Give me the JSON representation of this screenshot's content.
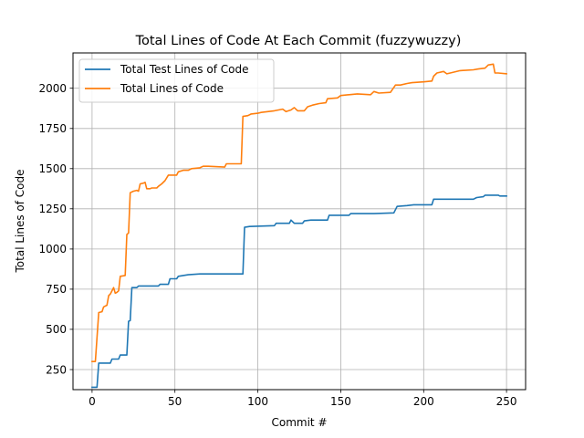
{
  "chart_data": {
    "type": "line",
    "title": "Total Lines of Code At Each Commit (fuzzywuzzy)",
    "xlabel": "Commit #",
    "ylabel": "Total Lines of Code",
    "xlim": [
      -11.5,
      261.5
    ],
    "ylim": [
      125,
      2220
    ],
    "xticks": [
      0,
      50,
      100,
      150,
      200,
      250
    ],
    "yticks": [
      250,
      500,
      750,
      1000,
      1250,
      1500,
      1750,
      2000
    ],
    "ytick_labels": [
      "250",
      "500",
      "750",
      "1000",
      "1250",
      "1500",
      "1750",
      "2000"
    ],
    "grid": true,
    "legend_position": "top-left",
    "colors": {
      "test": "#1f77b4",
      "total": "#ff7f0e"
    },
    "series": [
      {
        "name": "Total Test Lines of Code",
        "points": [
          [
            0,
            140
          ],
          [
            3,
            140
          ],
          [
            4,
            290
          ],
          [
            11,
            290
          ],
          [
            12,
            315
          ],
          [
            16,
            315
          ],
          [
            17,
            340
          ],
          [
            21,
            340
          ],
          [
            22,
            550
          ],
          [
            23,
            555
          ],
          [
            24,
            760
          ],
          [
            27,
            760
          ],
          [
            28,
            770
          ],
          [
            40,
            770
          ],
          [
            41,
            780
          ],
          [
            46,
            780
          ],
          [
            47,
            815
          ],
          [
            51,
            815
          ],
          [
            52,
            830
          ],
          [
            55,
            835
          ],
          [
            58,
            840
          ],
          [
            65,
            845
          ],
          [
            75,
            845
          ],
          [
            91,
            845
          ],
          [
            92,
            1135
          ],
          [
            95,
            1140
          ],
          [
            110,
            1145
          ],
          [
            111,
            1160
          ],
          [
            119,
            1160
          ],
          [
            120,
            1180
          ],
          [
            122,
            1160
          ],
          [
            127,
            1160
          ],
          [
            128,
            1175
          ],
          [
            132,
            1180
          ],
          [
            142,
            1180
          ],
          [
            143,
            1210
          ],
          [
            155,
            1210
          ],
          [
            156,
            1220
          ],
          [
            170,
            1220
          ],
          [
            182,
            1225
          ],
          [
            184,
            1265
          ],
          [
            190,
            1270
          ],
          [
            194,
            1275
          ],
          [
            205,
            1275
          ],
          [
            206,
            1310
          ],
          [
            230,
            1310
          ],
          [
            232,
            1320
          ],
          [
            236,
            1325
          ],
          [
            237,
            1335
          ],
          [
            245,
            1335
          ],
          [
            246,
            1330
          ],
          [
            250,
            1330
          ]
        ]
      },
      {
        "name": "Total Lines of Code",
        "points": [
          [
            0,
            300
          ],
          [
            2,
            300
          ],
          [
            4,
            605
          ],
          [
            6,
            610
          ],
          [
            7,
            640
          ],
          [
            9,
            650
          ],
          [
            10,
            710
          ],
          [
            11,
            720
          ],
          [
            12,
            740
          ],
          [
            13,
            760
          ],
          [
            14,
            725
          ],
          [
            15,
            730
          ],
          [
            16,
            740
          ],
          [
            17,
            830
          ],
          [
            20,
            835
          ],
          [
            21,
            1090
          ],
          [
            22,
            1100
          ],
          [
            23,
            1350
          ],
          [
            25,
            1360
          ],
          [
            27,
            1365
          ],
          [
            28,
            1360
          ],
          [
            29,
            1405
          ],
          [
            31,
            1410
          ],
          [
            32,
            1415
          ],
          [
            33,
            1375
          ],
          [
            35,
            1375
          ],
          [
            36,
            1380
          ],
          [
            39,
            1380
          ],
          [
            40,
            1390
          ],
          [
            42,
            1405
          ],
          [
            44,
            1425
          ],
          [
            46,
            1460
          ],
          [
            51,
            1460
          ],
          [
            52,
            1480
          ],
          [
            55,
            1490
          ],
          [
            58,
            1490
          ],
          [
            60,
            1500
          ],
          [
            65,
            1505
          ],
          [
            67,
            1515
          ],
          [
            70,
            1515
          ],
          [
            80,
            1510
          ],
          [
            81,
            1530
          ],
          [
            90,
            1530
          ],
          [
            91,
            1825
          ],
          [
            94,
            1830
          ],
          [
            96,
            1840
          ],
          [
            100,
            1845
          ],
          [
            102,
            1850
          ],
          [
            110,
            1860
          ],
          [
            115,
            1870
          ],
          [
            117,
            1855
          ],
          [
            120,
            1865
          ],
          [
            122,
            1880
          ],
          [
            124,
            1860
          ],
          [
            128,
            1860
          ],
          [
            130,
            1885
          ],
          [
            133,
            1895
          ],
          [
            137,
            1905
          ],
          [
            141,
            1910
          ],
          [
            142,
            1935
          ],
          [
            148,
            1940
          ],
          [
            150,
            1955
          ],
          [
            155,
            1960
          ],
          [
            160,
            1965
          ],
          [
            168,
            1960
          ],
          [
            170,
            1980
          ],
          [
            173,
            1970
          ],
          [
            180,
            1975
          ],
          [
            183,
            2020
          ],
          [
            186,
            2020
          ],
          [
            190,
            2030
          ],
          [
            193,
            2035
          ],
          [
            200,
            2040
          ],
          [
            205,
            2045
          ],
          [
            206,
            2075
          ],
          [
            208,
            2095
          ],
          [
            212,
            2105
          ],
          [
            214,
            2090
          ],
          [
            218,
            2100
          ],
          [
            222,
            2110
          ],
          [
            230,
            2115
          ],
          [
            233,
            2120
          ],
          [
            237,
            2125
          ],
          [
            239,
            2145
          ],
          [
            242,
            2150
          ],
          [
            243,
            2095
          ],
          [
            245,
            2095
          ],
          [
            250,
            2090
          ]
        ]
      }
    ]
  }
}
